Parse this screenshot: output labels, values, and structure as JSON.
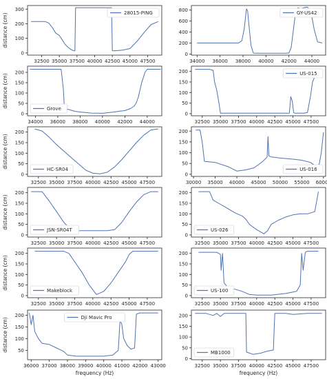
{
  "figure": {
    "ylabel": "distance (cm)",
    "xlabel": "frequency (Hz)",
    "line_color": "#4c72b0"
  },
  "chart_data": [
    {
      "type": "line",
      "legend": "28015-PING",
      "legend_position": "top-right",
      "xlabel": "",
      "ylabel": "distance (cm)",
      "xlim": [
        30500,
        49500
      ],
      "ylim": [
        -15,
        325
      ],
      "xticks": [
        32500,
        35000,
        37500,
        40000,
        42500,
        45000,
        47500
      ],
      "yticks": [
        0,
        100,
        200,
        300
      ],
      "x": [
        31000,
        33000,
        33500,
        34000,
        34500,
        35000,
        35400,
        35800,
        36200,
        36600,
        37000,
        37200,
        37300,
        40000,
        42400,
        42500,
        43000,
        44000,
        45000,
        46000,
        47000,
        48000,
        49000
      ],
      "y": [
        215,
        215,
        205,
        175,
        135,
        120,
        90,
        60,
        40,
        25,
        15,
        14,
        310,
        310,
        310,
        15,
        15,
        20,
        30,
        80,
        140,
        195,
        215
      ]
    },
    {
      "type": "line",
      "legend": "GY-US42",
      "legend_position": "top-right",
      "xlabel": "",
      "ylabel": "",
      "xlim": [
        33500,
        45200
      ],
      "ylim": [
        -20,
        880
      ],
      "xticks": [
        34000,
        36000,
        38000,
        40000,
        42000,
        44000
      ],
      "yticks": [
        0,
        200,
        400,
        600,
        800
      ],
      "x": [
        34000,
        37000,
        37600,
        37900,
        38100,
        38300,
        38400,
        38600,
        38700,
        38900,
        39000,
        40000,
        41000,
        41800,
        42000,
        42200,
        42400,
        42600,
        42800,
        43000,
        43300,
        43600,
        43900,
        44200,
        44500,
        44900
      ],
      "y": [
        200,
        200,
        200,
        240,
        450,
        820,
        780,
        350,
        150,
        20,
        15,
        15,
        15,
        15,
        20,
        120,
        450,
        800,
        840,
        820,
        840,
        850,
        800,
        450,
        220,
        200
      ]
    },
    {
      "type": "line",
      "legend": "Grove",
      "legend_position": "bottom-left",
      "xlabel": "",
      "ylabel": "distance (cm)",
      "xlim": [
        33300,
        45300
      ],
      "ylim": [
        -10,
        230
      ],
      "xticks": [
        34000,
        36000,
        38000,
        40000,
        42000,
        44000
      ],
      "yticks": [
        0,
        50,
        100,
        150,
        200
      ],
      "x": [
        33500,
        36000,
        36300,
        36500,
        36600,
        37000,
        37500,
        38000,
        39000,
        40000,
        41000,
        41500,
        42000,
        42500,
        42800,
        43000,
        43200,
        43500,
        43800,
        44000,
        45200
      ],
      "y": [
        215,
        215,
        215,
        120,
        25,
        20,
        12,
        8,
        3,
        2,
        8,
        12,
        15,
        25,
        35,
        50,
        80,
        150,
        200,
        215,
        215
      ]
    },
    {
      "type": "line",
      "legend": "US-015",
      "legend_position": "top-right",
      "xlabel": "",
      "ylabel": "",
      "xlim": [
        31000,
        49500
      ],
      "ylim": [
        -10,
        225
      ],
      "xticks": [
        32500,
        35000,
        37500,
        40000,
        42500,
        45000,
        47500
      ],
      "yticks": [
        0,
        50,
        100,
        150,
        200
      ],
      "x": [
        31500,
        33500,
        34000,
        34200,
        34500,
        34800,
        35000,
        36000,
        40000,
        44500,
        44700,
        44900,
        45100,
        45300,
        45500,
        46500,
        47000,
        47400,
        47700,
        48000,
        48500,
        49000
      ],
      "y": [
        210,
        210,
        205,
        150,
        110,
        50,
        2,
        2,
        2,
        2,
        80,
        60,
        5,
        2,
        2,
        2,
        5,
        80,
        150,
        175,
        205,
        210
      ]
    },
    {
      "type": "line",
      "legend": "HC-SR04",
      "legend_position": "bottom-left",
      "xlabel": "",
      "ylabel": "distance (cm)",
      "xlim": [
        31000,
        49500
      ],
      "ylim": [
        -10,
        225
      ],
      "xticks": [
        32500,
        35000,
        37500,
        40000,
        42500,
        45000,
        47500
      ],
      "yticks": [
        0,
        50,
        100,
        150,
        200
      ],
      "x": [
        32000,
        33000,
        34000,
        35000,
        36000,
        37000,
        38000,
        39000,
        40000,
        41000,
        42000,
        43000,
        44000,
        45000,
        46000,
        47000,
        48000,
        49000
      ],
      "y": [
        215,
        205,
        175,
        140,
        110,
        80,
        50,
        20,
        5,
        2,
        10,
        35,
        70,
        110,
        150,
        185,
        210,
        215
      ]
    },
    {
      "type": "line",
      "legend": "US-016",
      "legend_position": "bottom-right",
      "xlabel": "",
      "ylabel": "",
      "xlim": [
        29500,
        60500
      ],
      "ylim": [
        -10,
        220
      ],
      "xticks": [
        30000,
        35000,
        40000,
        45000,
        50000,
        55000,
        60000
      ],
      "yticks": [
        0,
        50,
        100,
        150,
        200
      ],
      "x": [
        30500,
        31500,
        32000,
        32500,
        35000,
        38000,
        40000,
        42000,
        44000,
        46000,
        47000,
        47200,
        47400,
        48000,
        50000,
        53000,
        55000,
        57000,
        58000,
        59000,
        59500,
        60000
      ],
      "y": [
        205,
        205,
        150,
        60,
        55,
        35,
        15,
        20,
        30,
        60,
        80,
        175,
        85,
        80,
        75,
        70,
        65,
        55,
        40,
        45,
        100,
        195
      ]
    },
    {
      "type": "line",
      "legend": "JSN-SR04T",
      "legend_position": "bottom-left",
      "xlabel": "",
      "ylabel": "distance (cm)",
      "xlim": [
        31000,
        49500
      ],
      "ylim": [
        -10,
        225
      ],
      "xticks": [
        32500,
        35000,
        37500,
        40000,
        42500,
        45000,
        47500
      ],
      "yticks": [
        0,
        50,
        100,
        150,
        200
      ],
      "x": [
        31500,
        33000,
        34000,
        35000,
        36000,
        37000,
        38000,
        40000,
        42000,
        43000,
        44000,
        45000,
        46000,
        47000,
        48000,
        49000
      ],
      "y": [
        205,
        205,
        160,
        110,
        60,
        25,
        20,
        20,
        20,
        25,
        60,
        110,
        155,
        190,
        205,
        205
      ]
    },
    {
      "type": "line",
      "legend": "US-026",
      "legend_position": "bottom-left",
      "xlabel": "",
      "ylabel": "",
      "xlim": [
        31000,
        49500
      ],
      "ylim": [
        -10,
        225
      ],
      "xticks": [
        32500,
        35000,
        37500,
        40000,
        42500,
        45000,
        47500
      ],
      "yticks": [
        0,
        50,
        100,
        150,
        200
      ],
      "x": [
        32000,
        33500,
        34000,
        35000,
        36000,
        37000,
        38000,
        38500,
        39000,
        40000,
        41000,
        41500,
        42000,
        43000,
        44000,
        45000,
        46000,
        47000,
        48000,
        48500
      ],
      "y": [
        205,
        205,
        165,
        145,
        125,
        105,
        90,
        75,
        50,
        25,
        5,
        20,
        50,
        70,
        85,
        95,
        100,
        100,
        110,
        205
      ]
    },
    {
      "type": "line",
      "legend": "Makeblock",
      "legend_position": "bottom-left",
      "xlabel": "",
      "ylabel": "distance (cm)",
      "xlim": [
        31000,
        49500
      ],
      "ylim": [
        -10,
        225
      ],
      "xticks": [
        32500,
        35000,
        37500,
        40000,
        42500,
        45000,
        47500
      ],
      "yticks": [
        0,
        50,
        100,
        150,
        200
      ],
      "x": [
        32000,
        36000,
        36700,
        37500,
        38500,
        39500,
        40500,
        41500,
        42500,
        43500,
        44500,
        45000,
        45500,
        47000,
        49000
      ],
      "y": [
        210,
        210,
        200,
        160,
        110,
        50,
        5,
        20,
        60,
        110,
        160,
        195,
        210,
        210,
        210
      ]
    },
    {
      "type": "line",
      "legend": "US-100",
      "legend_position": "bottom-left",
      "xlabel": "",
      "ylabel": "",
      "xlim": [
        31000,
        49500
      ],
      "ylim": [
        -10,
        225
      ],
      "xticks": [
        32500,
        35000,
        37500,
        40000,
        42500,
        45000,
        47500
      ],
      "yticks": [
        0,
        50,
        100,
        150,
        200
      ],
      "x": [
        32000,
        34500,
        35000,
        35100,
        35300,
        35500,
        36000,
        37000,
        38000,
        39000,
        40000,
        42000,
        44000,
        45500,
        46000,
        46200,
        46400,
        46700,
        47000,
        48500
      ],
      "y": [
        205,
        205,
        195,
        120,
        200,
        60,
        40,
        30,
        20,
        5,
        2,
        2,
        10,
        20,
        50,
        200,
        120,
        205,
        210,
        210
      ]
    },
    {
      "type": "line",
      "legend": "Dji Mavic Pro",
      "legend_position": "top-center",
      "xlabel": "frequency (Hz)",
      "ylabel": "distance (cm)",
      "xlim": [
        35800,
        43200
      ],
      "ylim": [
        10,
        222
      ],
      "xticks": [
        36000,
        37000,
        38000,
        39000,
        40000,
        41000,
        42000,
        43000
      ],
      "yticks": [
        50,
        100,
        150,
        200
      ],
      "x": [
        35900,
        36000,
        36100,
        36200,
        36400,
        36600,
        37000,
        37400,
        37800,
        38000,
        38500,
        39000,
        39500,
        40000,
        40500,
        40800,
        40900,
        41000,
        41100,
        41300,
        41500,
        41700,
        41800,
        42000,
        42500,
        43000
      ],
      "y": [
        210,
        160,
        200,
        130,
        100,
        80,
        75,
        60,
        45,
        30,
        25,
        25,
        25,
        25,
        30,
        50,
        180,
        160,
        100,
        70,
        55,
        60,
        205,
        210,
        210,
        210
      ]
    },
    {
      "type": "line",
      "legend": "MB1000",
      "legend_position": "bottom-left",
      "xlabel": "frequency (Hz)",
      "ylabel": "",
      "xlim": [
        31000,
        49500
      ],
      "ylim": [
        -5,
        225
      ],
      "xticks": [
        32500,
        35000,
        37500,
        40000,
        42500,
        45000,
        47500
      ],
      "yticks": [
        0,
        50,
        100,
        150,
        200
      ],
      "x": [
        31500,
        33000,
        34000,
        34500,
        35000,
        35500,
        36500,
        37500,
        38500,
        38600,
        39500,
        40500,
        41500,
        42300,
        42500,
        43000,
        44000,
        45000,
        47000,
        49000
      ],
      "y": [
        210,
        210,
        200,
        210,
        195,
        210,
        210,
        210,
        210,
        30,
        20,
        25,
        35,
        40,
        210,
        210,
        210,
        205,
        210,
        210
      ]
    }
  ]
}
